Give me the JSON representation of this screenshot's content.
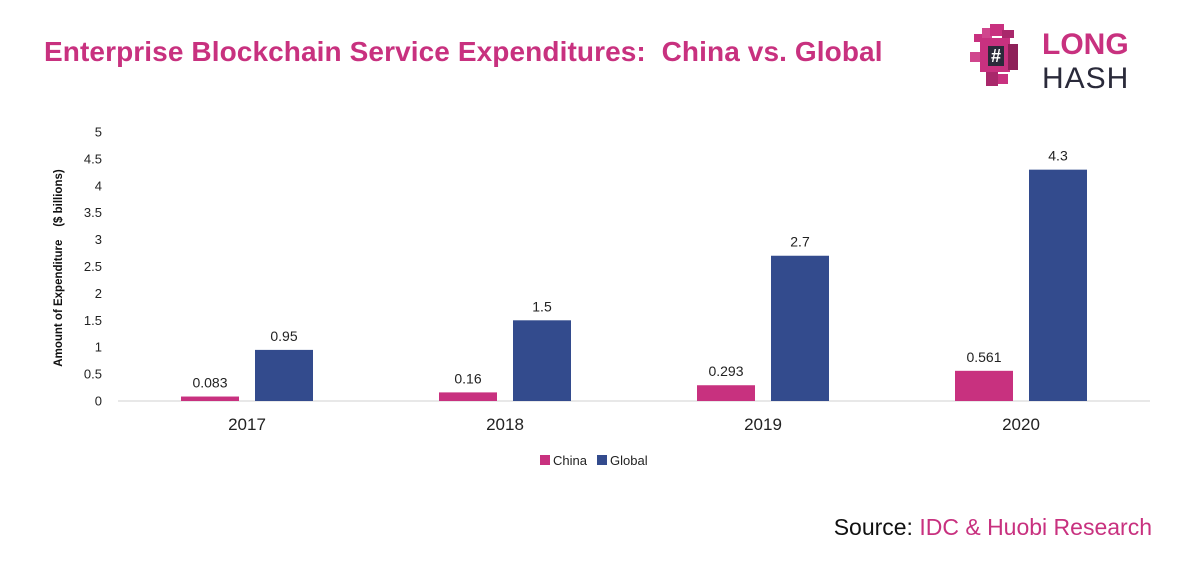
{
  "title": "Enterprise Blockchain Service Expenditures:  China vs. Global",
  "logo": {
    "line1": "LONG",
    "line2": "HASH",
    "icon": "pixel-dinosaur-hash-icon"
  },
  "source": {
    "label": "Source:",
    "value": "IDC & Huobi Research"
  },
  "colors": {
    "china": "#c8317f",
    "global": "#334b8d",
    "brand": "#c8317f",
    "logo_text": "#2a2a3a"
  },
  "chart_data": {
    "type": "bar",
    "title": "Enterprise Blockchain Service Expenditures:  China vs. Global",
    "categories": [
      "2017",
      "2018",
      "2019",
      "2020"
    ],
    "series": [
      {
        "name": "China",
        "values": [
          0.083,
          0.16,
          0.293,
          0.561
        ],
        "labels": [
          "0.083",
          "0.16",
          "0.293",
          "0.561"
        ]
      },
      {
        "name": "Global",
        "values": [
          0.95,
          1.5,
          2.7,
          4.3
        ],
        "labels": [
          "0.95",
          "1.5",
          "2.7",
          "4.3"
        ]
      }
    ],
    "xlabel": "",
    "ylabel": "Amount of Expenditure    ($ billions)",
    "ylim": [
      0,
      5
    ],
    "yticks": [
      "0",
      "0.5",
      "1",
      "1.5",
      "2",
      "2.5",
      "3",
      "3.5",
      "4",
      "4.5",
      "5"
    ],
    "grid": false,
    "legend": "bottom-center"
  }
}
